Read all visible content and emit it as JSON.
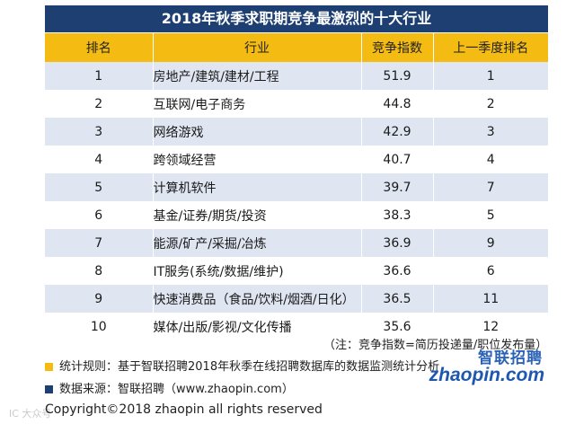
{
  "title": "2018年秋季求职期竞争最激烈的十大行业",
  "headers": [
    "排名",
    "行业",
    "竞争指数",
    "上一季度排名"
  ],
  "rows": [
    {
      "rank": "1",
      "industry": "房地产/建筑/建材/工程",
      "score": "51.9",
      "prev": "1"
    },
    {
      "rank": "2",
      "industry": "互联网/电子商务",
      "score": "44.8",
      "prev": "2"
    },
    {
      "rank": "3",
      "industry": "网络游戏",
      "score": "42.9",
      "prev": "3"
    },
    {
      "rank": "4",
      "industry": "跨领域经营",
      "score": "40.7",
      "prev": "4"
    },
    {
      "rank": "5",
      "industry": "计算机软件",
      "score": "39.7",
      "prev": "7"
    },
    {
      "rank": "6",
      "industry": "基金/证券/期货/投资",
      "score": "38.3",
      "prev": "5"
    },
    {
      "rank": "7",
      "industry": "能源/矿产/采掘/冶炼",
      "score": "36.9",
      "prev": "9"
    },
    {
      "rank": "8",
      "industry": "IT服务(系统/数据/维护)",
      "score": "36.6",
      "prev": "6"
    },
    {
      "rank": "9",
      "industry": "快速消费品（食品/饮料/烟酒/日化）",
      "score": "36.5",
      "prev": "11"
    },
    {
      "rank": "10",
      "industry": "媒体/出版/影视/文化传播",
      "score": "35.6",
      "prev": "12"
    }
  ],
  "note": "（注：竞争指数=简历投递量/职位发布量）",
  "footer": {
    "rule": "统计规则：基于智联招聘2018年秋季在线招聘数据库的数据监测统计分析",
    "source": "数据来源：智联招聘（www.zhaopin.com）",
    "copyright": "Copyright©2018 zhaopin all rights reserved"
  },
  "logo": {
    "cn": "智联招聘",
    "en": "zhaopin.com"
  },
  "watermark": "IC 大众号",
  "colors": {
    "title_bg": "#1e3f72",
    "header_bg": "#f4bb12",
    "stripe": "#dfe6f1",
    "logo": "#1e57b0"
  }
}
